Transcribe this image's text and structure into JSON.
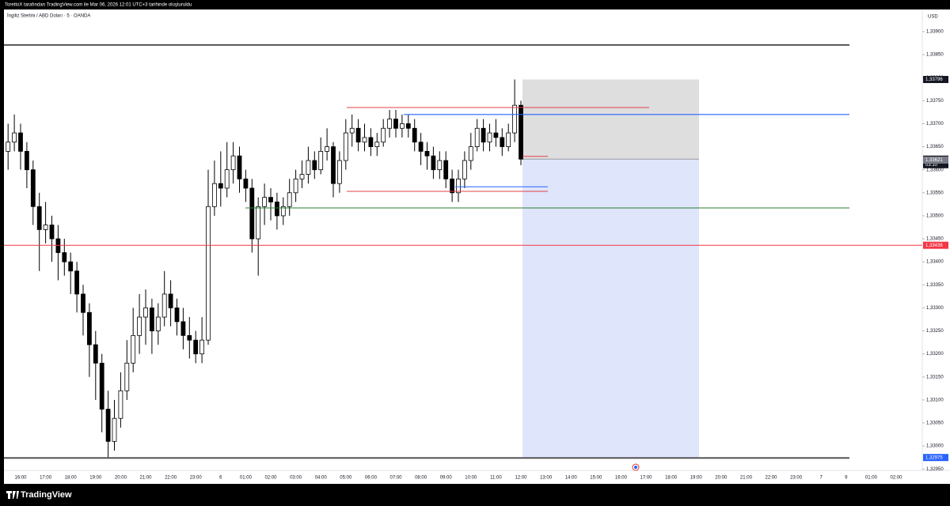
{
  "header": {
    "caption": "TorettoX tarafından TradingView.com ile Mar 06, 2026 12:01 UTC+3 tarihinde oluşturuldu"
  },
  "footer": {
    "logo": "TradingView"
  },
  "chart_data": {
    "type": "candlestick",
    "title": "İngiliz Sterlini / ABD Doları · 5 · OANDA",
    "currency": "USD",
    "up_color": "#ffffff",
    "down_color": "#000000",
    "border_color": "#000000",
    "ylim": [
      1.32947,
      1.33948
    ],
    "yticks": [
      {
        "value": 1.3295,
        "label": "1,32950"
      },
      {
        "value": 1.33,
        "label": "1,33000"
      },
      {
        "value": 1.3305,
        "label": "1,33050"
      },
      {
        "value": 1.331,
        "label": "1,33100"
      },
      {
        "value": 1.3315,
        "label": "1,33150"
      },
      {
        "value": 1.332,
        "label": "1,33200"
      },
      {
        "value": 1.3325,
        "label": "1,33250"
      },
      {
        "value": 1.333,
        "label": "1,33300"
      },
      {
        "value": 1.3335,
        "label": "1,33350"
      },
      {
        "value": 1.334,
        "label": "1,33400"
      },
      {
        "value": 1.3345,
        "label": "1,33450"
      },
      {
        "value": 1.335,
        "label": "1,33500"
      },
      {
        "value": 1.3355,
        "label": "1,33550"
      },
      {
        "value": 1.336,
        "label": "1,33600"
      },
      {
        "value": 1.3365,
        "label": "1,33650"
      },
      {
        "value": 1.337,
        "label": "1,33700"
      },
      {
        "value": 1.3375,
        "label": "1,33750"
      },
      {
        "value": 1.338,
        "label": "1,33800"
      },
      {
        "value": 1.3385,
        "label": "1,33850"
      },
      {
        "value": 1.339,
        "label": "1,33900"
      }
    ],
    "categories": [
      "16:00",
      "17:00",
      "18:00",
      "19:00",
      "20:00",
      "21:00",
      "22:00",
      "23:00",
      "6",
      "01:00",
      "02:00",
      "03:00",
      "04:00",
      "05:00",
      "06:00",
      "07:00",
      "08:00",
      "09:00",
      "10:00",
      "11:00",
      "12:00",
      "13:00",
      "14:00",
      "15:00",
      "16:00",
      "17:00",
      "18:00",
      "19:00",
      "20:00",
      "21:00",
      "22:00",
      "23:00",
      "7",
      "9",
      "01:00",
      "02:00"
    ],
    "candles": [
      [
        1.3364,
        1.337,
        1.336,
        1.3366
      ],
      [
        1.3366,
        1.3372,
        1.3364,
        1.3368
      ],
      [
        1.3368,
        1.337,
        1.336,
        1.3364
      ],
      [
        1.3364,
        1.3366,
        1.3356,
        1.336
      ],
      [
        1.336,
        1.3362,
        1.3348,
        1.3352
      ],
      [
        1.3352,
        1.3355,
        1.3338,
        1.3347
      ],
      [
        1.3347,
        1.3353,
        1.3344,
        1.3348
      ],
      [
        1.3348,
        1.335,
        1.334,
        1.3345
      ],
      [
        1.3345,
        1.3348,
        1.3336,
        1.3342
      ],
      [
        1.3342,
        1.3345,
        1.3337,
        1.334
      ],
      [
        1.334,
        1.3342,
        1.3333,
        1.3338
      ],
      [
        1.3338,
        1.334,
        1.3329,
        1.3333
      ],
      [
        1.3333,
        1.3335,
        1.3324,
        1.3329
      ],
      [
        1.3329,
        1.3331,
        1.3315,
        1.3322
      ],
      [
        1.3322,
        1.3325,
        1.331,
        1.3318
      ],
      [
        1.3318,
        1.332,
        1.3303,
        1.3308
      ],
      [
        1.3308,
        1.3312,
        1.32975,
        1.3301
      ],
      [
        1.3301,
        1.331,
        1.3299,
        1.3306
      ],
      [
        1.3306,
        1.3316,
        1.3304,
        1.3312
      ],
      [
        1.3312,
        1.3323,
        1.331,
        1.3318
      ],
      [
        1.3318,
        1.333,
        1.3316,
        1.3324
      ],
      [
        1.3324,
        1.3333,
        1.332,
        1.3328
      ],
      [
        1.3328,
        1.3334,
        1.3322,
        1.333
      ],
      [
        1.333,
        1.3332,
        1.332,
        1.3325
      ],
      [
        1.3325,
        1.3331,
        1.3322,
        1.3328
      ],
      [
        1.3328,
        1.3338,
        1.3326,
        1.3333
      ],
      [
        1.3333,
        1.3336,
        1.3326,
        1.333
      ],
      [
        1.333,
        1.3332,
        1.3324,
        1.3327
      ],
      [
        1.3327,
        1.333,
        1.3321,
        1.3324
      ],
      [
        1.3324,
        1.3328,
        1.3319,
        1.3323
      ],
      [
        1.3323,
        1.3325,
        1.3318,
        1.332
      ],
      [
        1.332,
        1.3328,
        1.3318,
        1.3323
      ],
      [
        1.3323,
        1.336,
        1.3322,
        1.3352
      ],
      [
        1.3352,
        1.3362,
        1.335,
        1.3357
      ],
      [
        1.3357,
        1.3364,
        1.3352,
        1.3356
      ],
      [
        1.3356,
        1.3366,
        1.3354,
        1.336
      ],
      [
        1.336,
        1.3366,
        1.3357,
        1.3363
      ],
      [
        1.3363,
        1.3365,
        1.3355,
        1.3358
      ],
      [
        1.3358,
        1.336,
        1.3353,
        1.3356
      ],
      [
        1.3356,
        1.3358,
        1.3342,
        1.3345
      ],
      [
        1.3345,
        1.3354,
        1.3337,
        1.3352
      ],
      [
        1.3352,
        1.3357,
        1.3348,
        1.3354
      ],
      [
        1.3354,
        1.3356,
        1.3349,
        1.3353
      ],
      [
        1.3353,
        1.3355,
        1.3347,
        1.335
      ],
      [
        1.335,
        1.3354,
        1.3348,
        1.3352
      ],
      [
        1.3352,
        1.3358,
        1.335,
        1.3355
      ],
      [
        1.3355,
        1.336,
        1.3353,
        1.3358
      ],
      [
        1.3358,
        1.3362,
        1.3356,
        1.3359
      ],
      [
        1.3359,
        1.3365,
        1.3357,
        1.3362
      ],
      [
        1.3362,
        1.3364,
        1.3358,
        1.336
      ],
      [
        1.336,
        1.3367,
        1.3359,
        1.3364
      ],
      [
        1.3364,
        1.3369,
        1.3362,
        1.3365
      ],
      [
        1.3365,
        1.3366,
        1.3354,
        1.3357
      ],
      [
        1.3357,
        1.3364,
        1.3355,
        1.3362
      ],
      [
        1.3362,
        1.3371,
        1.336,
        1.3368
      ],
      [
        1.3368,
        1.3372,
        1.3365,
        1.3369
      ],
      [
        1.3369,
        1.3371,
        1.3364,
        1.3366
      ],
      [
        1.3366,
        1.337,
        1.3364,
        1.3367
      ],
      [
        1.3367,
        1.3369,
        1.3363,
        1.3365
      ],
      [
        1.3365,
        1.3368,
        1.3363,
        1.3366
      ],
      [
        1.3366,
        1.3371,
        1.3365,
        1.3369
      ],
      [
        1.3369,
        1.3373,
        1.3367,
        1.3371
      ],
      [
        1.3371,
        1.3373,
        1.3367,
        1.3369
      ],
      [
        1.3369,
        1.3372,
        1.3367,
        1.337
      ],
      [
        1.337,
        1.3372,
        1.3367,
        1.3369
      ],
      [
        1.3369,
        1.3371,
        1.3364,
        1.3366
      ],
      [
        1.3366,
        1.3368,
        1.3361,
        1.3364
      ],
      [
        1.3364,
        1.3366,
        1.336,
        1.3363
      ],
      [
        1.3363,
        1.3365,
        1.3358,
        1.336
      ],
      [
        1.336,
        1.3364,
        1.3358,
        1.3362
      ],
      [
        1.3362,
        1.3364,
        1.3356,
        1.3358
      ],
      [
        1.3358,
        1.336,
        1.3353,
        1.3355
      ],
      [
        1.3355,
        1.336,
        1.3353,
        1.3358
      ],
      [
        1.3358,
        1.3364,
        1.3356,
        1.3362
      ],
      [
        1.3362,
        1.3368,
        1.336,
        1.3365
      ],
      [
        1.3365,
        1.3371,
        1.3364,
        1.3369
      ],
      [
        1.3369,
        1.3371,
        1.3364,
        1.3366
      ],
      [
        1.3366,
        1.337,
        1.3364,
        1.3368
      ],
      [
        1.3368,
        1.3371,
        1.3365,
        1.3367
      ],
      [
        1.3367,
        1.3369,
        1.3363,
        1.3365
      ],
      [
        1.3365,
        1.337,
        1.3364,
        1.3368
      ],
      [
        1.3368,
        1.33796,
        1.3366,
        1.3374
      ],
      [
        1.3374,
        1.3375,
        1.3361,
        1.33623
      ]
    ],
    "levels": [
      {
        "value": 1.33871,
        "color": "#555555"
      },
      {
        "value": 1.32974,
        "color": "#555555"
      },
      {
        "value": 1.33436,
        "color": "#f23645"
      },
      {
        "value": 1.33735,
        "color": "#e0404a"
      },
      {
        "value": 1.3372,
        "color": "#2962ff"
      },
      {
        "value": 1.33629,
        "color": "#e0404a"
      },
      {
        "value": 1.33563,
        "color": "#2962ff"
      },
      {
        "value": 1.33553,
        "color": "#e0404a"
      },
      {
        "value": 1.33517,
        "color": "#2e7d32"
      }
    ],
    "position": {
      "stop": 1.33796,
      "entry": 1.33623,
      "target": 1.32975,
      "stop_color": "#dedede",
      "target_color": "#dfe5fb"
    },
    "price_labels": [
      {
        "value": 1.33796,
        "label": "1,33796",
        "color": "#131722"
      },
      {
        "value": 1.33623,
        "label": "1,33623",
        "color": "#131722",
        "countdown": "03:10"
      },
      {
        "value": 1.33621,
        "label": "1,33621",
        "color": "#787b86"
      },
      {
        "value": 1.33436,
        "label": "1,33436",
        "color": "#f23645"
      },
      {
        "value": 1.32975,
        "label": "1,32975",
        "color": "#2962ff"
      }
    ]
  }
}
